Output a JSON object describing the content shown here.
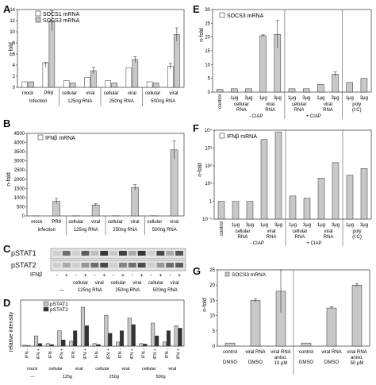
{
  "panels": {
    "A": {
      "letter": "A",
      "ylabel": "n-fold",
      "legend": [
        "SOCS1 mRNA",
        "SOCS3 mRNA"
      ],
      "yticks": [
        "0",
        "2",
        "4",
        "6",
        "8",
        "10",
        "12",
        "14"
      ],
      "xlabels_top": [
        "mock",
        "PR8",
        "cellular",
        "viral",
        "cellular",
        "viral",
        "cellular",
        "viral"
      ],
      "xlabels_bottom": [
        "infection",
        "125ng RNA",
        "250ng RNA",
        "500ng RNA"
      ]
    },
    "B": {
      "letter": "B",
      "ylabel": "n-fold",
      "legend": [
        "IFNβ mRNA"
      ],
      "yticks": [
        "0",
        "500",
        "1000",
        "1500",
        "2000",
        "2500",
        "3000",
        "3500",
        "4000",
        "4500"
      ],
      "xlabels_top": [
        "mock",
        "PR8",
        "cellular",
        "viral",
        "cellular",
        "viral",
        "cellular",
        "viral"
      ],
      "xlabels_bottom": [
        "infection",
        "125ng RNA",
        "250ng RNA",
        "500ng RNA"
      ]
    },
    "C": {
      "letter": "C",
      "rows": [
        "pSTAT1",
        "pSTAT2",
        "IFNβ"
      ],
      "signs": [
        "-",
        "+",
        "-",
        "+",
        "-",
        "+",
        "-",
        "+",
        "-",
        "+",
        "-",
        "+",
        "-",
        "+"
      ],
      "groups_top": [
        "cellular",
        "viral",
        "cellular",
        "viral",
        "cellular",
        "viral"
      ],
      "groups_bottom": [
        "—",
        "125ng RNA",
        "250ng RNA",
        "500ng RNA"
      ]
    },
    "D": {
      "letter": "D",
      "ylabel": "relative intensity",
      "legend": [
        "pSTAT1",
        "pSTAT2"
      ],
      "xticks": [
        "IFN -",
        "IFN +",
        "IFN -",
        "IFN +",
        "IFN -",
        "IFN +",
        "IFN -",
        "IFN +",
        "IFN -",
        "IFN +",
        "IFN -",
        "IFN +",
        "IFN -",
        "IFN +"
      ],
      "groups_top": [
        "mock",
        "cellular",
        "viral",
        "cellular",
        "viral",
        "cellular",
        "viral"
      ],
      "groups_bottom": [
        "---",
        "125g",
        "250g",
        "500g"
      ]
    },
    "E": {
      "letter": "E",
      "ylabel": "n-fold",
      "legend": [
        "SOCS3 mRNA"
      ],
      "yticks": [
        "0",
        "5",
        "10",
        "15",
        "20",
        "25",
        "30"
      ],
      "xlabels_top": [
        "control",
        "1μg",
        "3μg",
        "1μg",
        "3μg",
        "1μg",
        "3μg",
        "1μg",
        "3μg",
        "1μg",
        "3μg"
      ],
      "groups_mid": [
        "cellular RNA",
        "viral RNA",
        "cellular RNA",
        "viral RNA",
        "poly (I:C)"
      ],
      "groups_bottom": [
        "- CIAP",
        "+ CIAP"
      ]
    },
    "F": {
      "letter": "F",
      "ylabel": "n-fold",
      "legend": [
        "IFNβ mRNA"
      ],
      "yticks": [
        "10⁻¹",
        "1",
        "10¹",
        "10²",
        "10³",
        "10⁴"
      ],
      "xlabels_top": [
        "control",
        "1μg",
        "3μg",
        "1μg",
        "3μg",
        "1μg",
        "3μg",
        "1μg",
        "3μg",
        "1μg",
        "3μg"
      ],
      "groups_mid": [
        "cellular RNA",
        "viral RNA",
        "cellular RNA",
        "viral RNA",
        "poly (I:C)"
      ],
      "groups_bottom": [
        "- CIAP",
        "+ CIAP"
      ]
    },
    "G": {
      "letter": "G",
      "ylabel": "n-fold",
      "legend": [
        "SOCS3 mRNA"
      ],
      "yticks": [
        "0",
        "5",
        "10",
        "15",
        "20",
        "25"
      ],
      "xlabels_top": [
        "control",
        "viral RNA",
        "viral RNA aniso. 10 μM",
        "control",
        "viral RNA",
        "viral RNA aniso. 50 μM"
      ],
      "xlabels_bottom": [
        "DMSO",
        "DMSO",
        "DMSO",
        "DMSO"
      ]
    }
  },
  "chart_data": [
    {
      "id": "A",
      "type": "bar",
      "ylabel": "n-fold",
      "ylim": [
        0,
        14
      ],
      "categories": [
        "mock infection",
        "PR8 infection",
        "cellular 125ng RNA",
        "viral 125ng RNA",
        "cellular 250ng RNA",
        "viral 250ng RNA",
        "cellular 500ng RNA",
        "viral 500ng RNA"
      ],
      "series": [
        {
          "name": "SOCS1 mRNA",
          "color": "#ffffff",
          "values": [
            1,
            4.5,
            1.2,
            1.8,
            1.2,
            3.5,
            1.0,
            3.8
          ]
        },
        {
          "name": "SOCS3 mRNA",
          "color": "#c8c8c8",
          "values": [
            1,
            12.0,
            0.8,
            3.0,
            0.8,
            5.0,
            0.8,
            9.5
          ]
        }
      ]
    },
    {
      "id": "B",
      "type": "bar",
      "ylabel": "n-fold",
      "ylim": [
        0,
        4500
      ],
      "categories": [
        "mock infection",
        "PR8 infection",
        "cellular 125ng RNA",
        "viral 125ng RNA",
        "cellular 250ng RNA",
        "viral 250ng RNA",
        "cellular 500ng RNA",
        "viral 500ng RNA"
      ],
      "series": [
        {
          "name": "IFNβ mRNA",
          "color": "#c8c8c8",
          "values": [
            1,
            800,
            5,
            600,
            10,
            1550,
            10,
            3600
          ]
        }
      ]
    },
    {
      "id": "D",
      "type": "bar",
      "ylabel": "relative intensity",
      "ylim": [
        0,
        90
      ],
      "categories": [
        "mock IFN-",
        "mock IFN+",
        "cell125 IFN-",
        "cell125 IFN+",
        "viral125 IFN-",
        "viral125 IFN+",
        "cell250 IFN-",
        "cell250 IFN+",
        "viral250 IFN-",
        "viral250 IFN+",
        "cell500 IFN-",
        "cell500 IFN+",
        "viral500 IFN-",
        "viral500 IFN+"
      ],
      "series": [
        {
          "name": "pSTAT1",
          "color": "#c8c8c8",
          "values": [
            2,
            20,
            5,
            30,
            10,
            76,
            5,
            60,
            8,
            55,
            5,
            45,
            8,
            40
          ]
        },
        {
          "name": "pSTAT2",
          "color": "#333333",
          "values": [
            1,
            5,
            3,
            12,
            30,
            40,
            3,
            25,
            30,
            42,
            4,
            20,
            30,
            35
          ]
        }
      ]
    },
    {
      "id": "E",
      "type": "bar",
      "ylabel": "n-fold",
      "ylim": [
        0,
        30
      ],
      "categories": [
        "control",
        "-CIAP cellular 1μg",
        "-CIAP cellular 3μg",
        "-CIAP viral 1μg",
        "-CIAP viral 3μg",
        "+CIAP cellular 1μg",
        "+CIAP cellular 3μg",
        "+CIAP viral 1μg",
        "+CIAP viral 3μg",
        "poly(I:C) 1μg",
        "poly(I:C) 3μg"
      ],
      "series": [
        {
          "name": "SOCS3 mRNA",
          "color": "#c8c8c8",
          "values": [
            1,
            1.2,
            1.2,
            20.5,
            21,
            1.2,
            1.2,
            2.8,
            6.5,
            3.5,
            5
          ]
        }
      ]
    },
    {
      "id": "F",
      "type": "bar",
      "ylabel": "n-fold",
      "log_scale": true,
      "ylim": [
        0.1,
        10000
      ],
      "categories": [
        "control",
        "-CIAP cellular 1μg",
        "-CIAP cellular 3μg",
        "-CIAP viral 1μg",
        "-CIAP viral 3μg",
        "+CIAP cellular 1μg",
        "+CIAP cellular 3μg",
        "+CIAP viral 1μg",
        "+CIAP viral 3μg",
        "poly(I:C) 1μg",
        "poly(I:C) 3μg"
      ],
      "series": [
        {
          "name": "IFNβ mRNA",
          "color": "#c8c8c8",
          "values": [
            1,
            1,
            1,
            3000,
            8000,
            2,
            1.5,
            20,
            150,
            30,
            70
          ]
        }
      ]
    },
    {
      "id": "G",
      "type": "bar",
      "ylabel": "n-fold",
      "ylim": [
        0,
        25
      ],
      "categories": [
        "control DMSO",
        "viral RNA DMSO",
        "viral RNA aniso. 10 μM",
        "control DMSO",
        "viral RNA DMSO",
        "viral RNA aniso. 50 μM"
      ],
      "series": [
        {
          "name": "SOCS3 mRNA",
          "color": "#c8c8c8",
          "values": [
            1,
            15,
            18,
            1,
            12.5,
            20
          ]
        }
      ]
    }
  ]
}
